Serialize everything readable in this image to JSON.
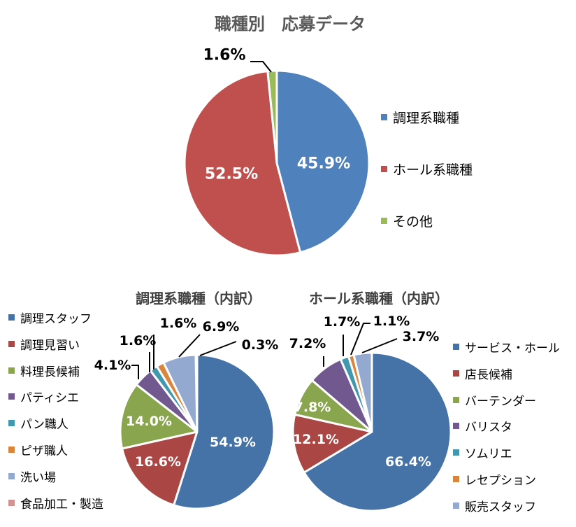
{
  "chart_data": [
    {
      "type": "pie",
      "title": "職種別　応募データ",
      "categories": [
        "調理系職種",
        "ホール系職種",
        "その他"
      ],
      "values": [
        45.9,
        52.5,
        1.6
      ],
      "labels": [
        "45.9%",
        "52.5%",
        "1.6%"
      ],
      "colors": [
        "#4f81bd",
        "#c0504d",
        "#9bbb59"
      ],
      "legend": "right"
    },
    {
      "type": "pie",
      "title": "調理系職種（内訳）",
      "categories": [
        "調理スタッフ",
        "調理見習い",
        "料理長候補",
        "パティシエ",
        "パン職人",
        "ピザ職人",
        "洗い場",
        "食品加工・製造"
      ],
      "values": [
        54.9,
        16.6,
        14.0,
        4.1,
        1.6,
        1.6,
        6.9,
        0.3
      ],
      "labels": [
        "54.9%",
        "16.6%",
        "14.0%",
        "4.1%",
        "1.6%",
        "1.6%",
        "6.9%",
        "0.3%"
      ],
      "colors": [
        "#4572a7",
        "#aa4643",
        "#89a54e",
        "#71588f",
        "#4198af",
        "#db843d",
        "#93a9cf",
        "#d19392"
      ],
      "legend": "left"
    },
    {
      "type": "pie",
      "title": "ホール系職種（内訳）",
      "categories": [
        "サービス・ホール",
        "店長候補",
        "バーテンダー",
        "バリスタ",
        "ソムリエ",
        "レセプション",
        "販売スタッフ"
      ],
      "values": [
        66.4,
        12.1,
        7.8,
        7.2,
        1.7,
        1.1,
        3.7
      ],
      "labels": [
        "66.4%",
        "12.1%",
        "7.8%",
        "7.2%",
        "1.7%",
        "1.1%",
        "3.7%"
      ],
      "colors": [
        "#4572a7",
        "#aa4643",
        "#89a54e",
        "#71588f",
        "#4198af",
        "#db843d",
        "#93a9cf"
      ],
      "legend": "right"
    }
  ]
}
